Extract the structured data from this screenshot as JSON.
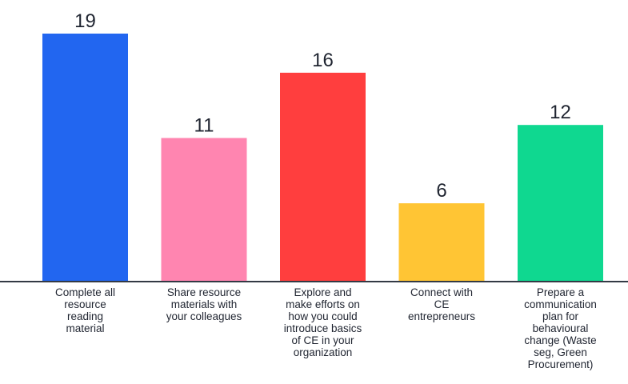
{
  "chart_data": {
    "type": "bar",
    "title": "",
    "xlabel": "",
    "ylabel": "",
    "ylim": [
      0,
      19
    ],
    "grid": false,
    "legend": "none",
    "categories": [
      "Complete all resource reading material",
      "Share resource materials with your colleagues",
      "Explore and make efforts on how you could introduce basics of CE in your organization",
      "Connect with CE entrepreneurs",
      "Prepare a communication plan for behavioural change (Waste seg, Green Procurement)"
    ],
    "category_label_lines": [
      [
        "Complete all",
        "resource",
        "reading",
        "material"
      ],
      [
        "Share resource",
        "materials with",
        "your colleagues"
      ],
      [
        "Explore and",
        "make efforts on",
        "how you could",
        "introduce basics",
        "of CE in your",
        "organization"
      ],
      [
        "Connect with",
        "CE",
        "entrepreneurs"
      ],
      [
        "Prepare a",
        "communication",
        "plan for",
        "behavioural",
        "change (Waste",
        "seg, Green",
        "Procurement)"
      ]
    ],
    "values": [
      19,
      11,
      16,
      6,
      12
    ],
    "value_labels": [
      "19",
      "11",
      "16",
      "6",
      "12"
    ],
    "colors": [
      "#2266f0",
      "#ff85b0",
      "#ff3e3e",
      "#ffc534",
      "#0fd890"
    ],
    "baseline_color": "#333a45",
    "label_color": "#1f2430"
  }
}
